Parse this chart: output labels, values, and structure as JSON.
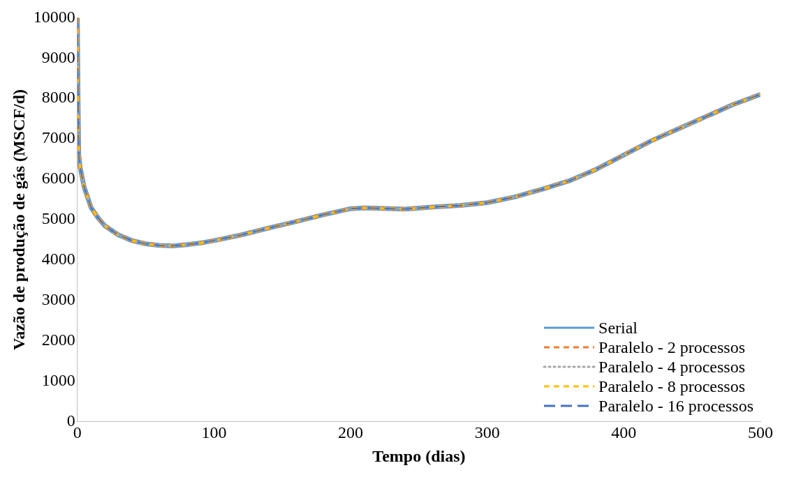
{
  "chart_data": {
    "type": "line",
    "xlabel": "Tempo (dias)",
    "ylabel": "Vazão de produção de gás (MSCF/d)",
    "x": [
      0,
      0.5,
      1,
      2,
      5,
      10,
      15,
      20,
      30,
      40,
      50,
      60,
      70,
      80,
      90,
      100,
      120,
      140,
      160,
      180,
      200,
      210,
      220,
      240,
      260,
      280,
      300,
      320,
      340,
      360,
      380,
      400,
      420,
      440,
      460,
      480,
      500
    ],
    "series": [
      {
        "name": "Serial",
        "color": "#5b9bd5",
        "line_style": "solid",
        "values": [
          10000,
          8000,
          6600,
          6300,
          5800,
          5300,
          5050,
          4850,
          4620,
          4480,
          4400,
          4360,
          4350,
          4380,
          4420,
          4480,
          4620,
          4790,
          4950,
          5120,
          5270,
          5290,
          5280,
          5260,
          5310,
          5350,
          5420,
          5560,
          5750,
          5960,
          6250,
          6600,
          6950,
          7250,
          7550,
          7850,
          8100
        ]
      },
      {
        "name": "Paralelo - 2 processos",
        "color": "#ed7d31",
        "line_style": "dashed",
        "values": [
          10000,
          8000,
          6600,
          6300,
          5800,
          5300,
          5050,
          4850,
          4620,
          4480,
          4400,
          4360,
          4350,
          4380,
          4420,
          4480,
          4620,
          4790,
          4950,
          5120,
          5270,
          5290,
          5280,
          5260,
          5310,
          5350,
          5420,
          5560,
          5750,
          5960,
          6250,
          6600,
          6950,
          7250,
          7550,
          7850,
          8100
        ]
      },
      {
        "name": "Paralelo - 4 processos",
        "color": "#a5a5a5",
        "line_style": "dotted",
        "values": [
          10000,
          8000,
          6600,
          6300,
          5800,
          5300,
          5050,
          4850,
          4620,
          4480,
          4400,
          4360,
          4350,
          4380,
          4420,
          4480,
          4620,
          4790,
          4950,
          5120,
          5270,
          5290,
          5280,
          5260,
          5310,
          5350,
          5420,
          5560,
          5750,
          5960,
          6250,
          6600,
          6950,
          7250,
          7550,
          7850,
          8100
        ]
      },
      {
        "name": "Paralelo - 8 processos",
        "color": "#ffc000",
        "line_style": "dashed",
        "values": [
          10000,
          8000,
          6600,
          6300,
          5800,
          5300,
          5050,
          4850,
          4620,
          4480,
          4400,
          4360,
          4350,
          4380,
          4420,
          4480,
          4620,
          4790,
          4950,
          5120,
          5270,
          5290,
          5280,
          5260,
          5310,
          5350,
          5420,
          5560,
          5750,
          5960,
          6250,
          6600,
          6950,
          7250,
          7550,
          7850,
          8100
        ]
      },
      {
        "name": "Paralelo - 16 processos",
        "color": "#4472c4",
        "line_style": "dashed",
        "values": [
          10000,
          8000,
          6600,
          6300,
          5800,
          5300,
          5050,
          4850,
          4620,
          4480,
          4400,
          4360,
          4350,
          4380,
          4420,
          4480,
          4620,
          4790,
          4950,
          5120,
          5270,
          5290,
          5280,
          5260,
          5310,
          5350,
          5420,
          5560,
          5750,
          5960,
          6250,
          6600,
          6950,
          7250,
          7550,
          7850,
          8100
        ]
      }
    ],
    "xlim": [
      0,
      500
    ],
    "xticks": [
      0,
      100,
      200,
      300,
      400,
      500
    ],
    "ylim": [
      0,
      10000
    ],
    "yticks": [
      0,
      1000,
      2000,
      3000,
      4000,
      5000,
      6000,
      7000,
      8000,
      9000,
      10000
    ],
    "grid": false,
    "legend": "bottom right",
    "marker": "none"
  }
}
